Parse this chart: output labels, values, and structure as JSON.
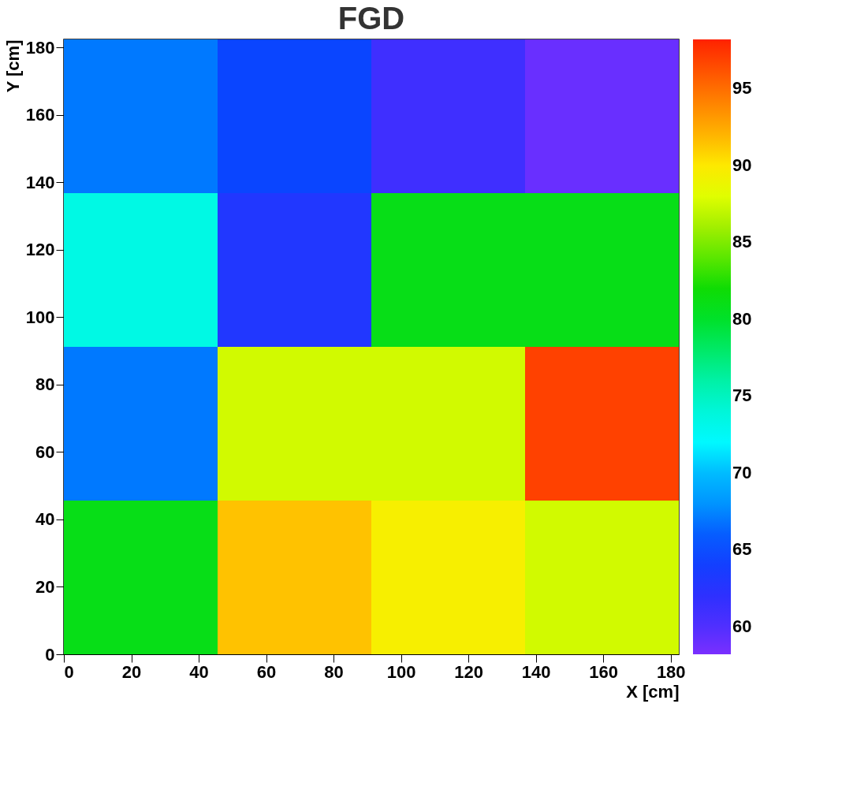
{
  "chart_data": {
    "type": "heatmap",
    "title": "FGD",
    "xlabel": "X [cm]",
    "ylabel": "Y [cm]",
    "x": [
      22.8,
      68.4,
      114,
      159.6
    ],
    "y": [
      159.6,
      114,
      68.4,
      22.8
    ],
    "cells": [
      [
        67,
        64.5,
        61,
        59
      ],
      [
        73.5,
        63,
        81,
        81
      ],
      [
        67,
        87.5,
        87.5,
        97
      ],
      [
        81,
        91.5,
        89.5,
        87.5
      ]
    ],
    "xlim": [
      0,
      182.4
    ],
    "ylim": [
      0,
      182.4
    ],
    "xticks": [
      0,
      20,
      40,
      60,
      80,
      100,
      120,
      140,
      160,
      180
    ],
    "yticks": [
      0,
      20,
      40,
      60,
      80,
      100,
      120,
      140,
      160,
      180
    ],
    "clim": [
      58.2,
      98.2
    ],
    "cticks": [
      60,
      65,
      70,
      75,
      80,
      85,
      90,
      95
    ],
    "grid": false
  }
}
